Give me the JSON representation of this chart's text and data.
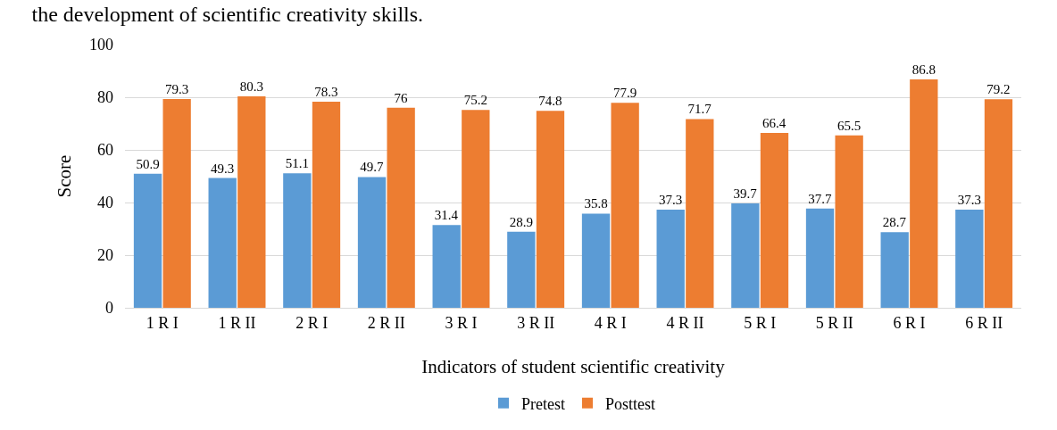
{
  "chart_data": {
    "type": "bar",
    "title": "the development of scientific creativity skills.",
    "xlabel": "Indicators of student scientific creativity",
    "ylabel": "Score",
    "categories": [
      "1 R I",
      "1 R II",
      "2 R I",
      "2 R II",
      "3 R I",
      "3 R II",
      "4 R I",
      "4 R II",
      "5 R I",
      "5 R II",
      "6 R I",
      "6 R II"
    ],
    "series": [
      {
        "name": "Pretest",
        "color": "#5b9bd5",
        "values": [
          50.9,
          49.3,
          51.1,
          49.7,
          31.4,
          28.9,
          35.8,
          37.3,
          39.7,
          37.7,
          28.7,
          37.3
        ]
      },
      {
        "name": "Posttest",
        "color": "#ed7d31",
        "values": [
          79.3,
          80.3,
          78.3,
          76,
          75.2,
          74.8,
          77.9,
          71.7,
          66.4,
          65.5,
          86.8,
          79.2
        ]
      }
    ],
    "ylim": [
      0,
      100
    ],
    "yticks": [
      0,
      20,
      40,
      60,
      80,
      100
    ],
    "grid": "y",
    "legend": "bottom",
    "data_labels": true
  }
}
